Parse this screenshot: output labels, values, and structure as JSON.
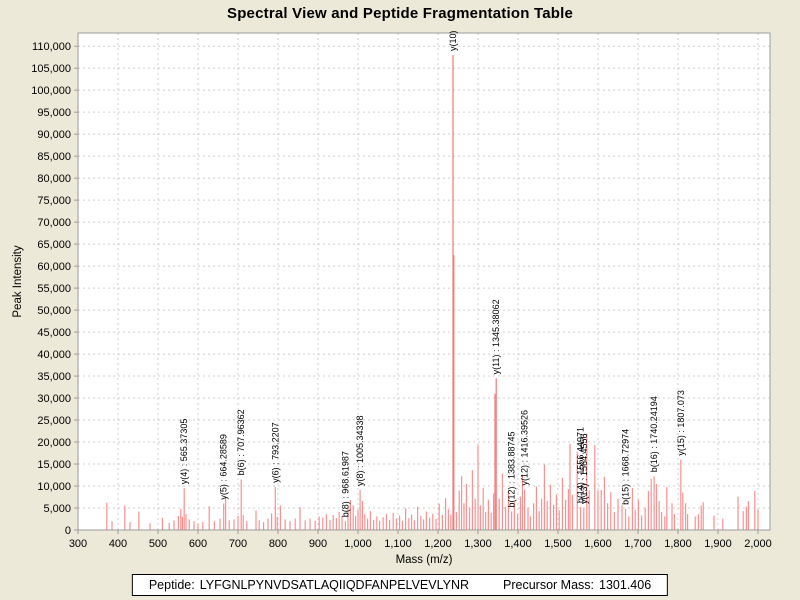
{
  "chart_data": {
    "type": "bar",
    "subtype": "mass-spectrum-stick-plot",
    "title": "Spectral View and Peptide Fragmentation Table",
    "xlabel": "Mass (m/z)",
    "ylabel": "Peak Intensity",
    "xlim": [
      300,
      2030
    ],
    "ylim": [
      0,
      113000
    ],
    "grid": true,
    "legend": "none",
    "plot_bg": "#ffffff",
    "page_bg": "#ece9d8",
    "grid_color": "#cfcfcf",
    "axis_color": "#9b9b9b",
    "tick_text_color": "#000000",
    "peak_color": "#fb9090",
    "peak_color_strong": "#f57878",
    "strong_threshold": 30000,
    "x_ticks": [
      300,
      400,
      500,
      600,
      700,
      800,
      900,
      1000,
      1100,
      1200,
      1300,
      1400,
      1500,
      1600,
      1700,
      1800,
      1900,
      2000
    ],
    "y_ticks": [
      0,
      5000,
      10000,
      15000,
      20000,
      25000,
      30000,
      35000,
      40000,
      45000,
      50000,
      55000,
      60000,
      65000,
      70000,
      75000,
      80000,
      85000,
      90000,
      95000,
      100000,
      105000,
      110000
    ],
    "annotations": [
      {
        "label": "y(4) : 565.37305",
        "mass": 565.4,
        "intensity": 9500
      },
      {
        "label": "y(5) : 664.28589",
        "mass": 664.3,
        "intensity": 6000
      },
      {
        "label": "b(6) : 707.96362",
        "mass": 708.0,
        "intensity": 11500
      },
      {
        "label": "y(6) : 793.2207",
        "mass": 793.2,
        "intensity": 9800
      },
      {
        "label": "b(8) : 968.61987",
        "mass": 968.6,
        "intensity": 2000
      },
      {
        "label": "y(8) : 1005.34338",
        "mass": 1005.3,
        "intensity": 9100
      },
      {
        "label": "y(10)",
        "mass": 1237.4,
        "intensity": 108000
      },
      {
        "label": "y(11) : 1345.38062",
        "mass": 1345.4,
        "intensity": 34500
      },
      {
        "label": "b(12) : 1383.88745",
        "mass": 1383.9,
        "intensity": 4200
      },
      {
        "label": "y(12) : 1416.39526",
        "mass": 1416.4,
        "intensity": 9200
      },
      {
        "label": "b(14) : 1556.44971",
        "mass": 1556.4,
        "intensity": 5200
      },
      {
        "label": "y(13) : 1564.4556",
        "mass": 1564.5,
        "intensity": 5000
      },
      {
        "label": "b(15) : 1668.72974",
        "mass": 1668.7,
        "intensity": 4800
      },
      {
        "label": "b(16) : 1740.24194",
        "mass": 1740.2,
        "intensity": 12200
      },
      {
        "label": "y(15) : 1807.073",
        "mass": 1807.1,
        "intensity": 16000
      }
    ],
    "peaks": [
      [
        372,
        6200
      ],
      [
        385,
        2000
      ],
      [
        417,
        5600
      ],
      [
        430,
        1800
      ],
      [
        452,
        4200
      ],
      [
        480,
        1500
      ],
      [
        511,
        2800
      ],
      [
        528,
        1600
      ],
      [
        540,
        2200
      ],
      [
        551,
        3200
      ],
      [
        557,
        4800
      ],
      [
        561,
        3000
      ],
      [
        565.4,
        9500
      ],
      [
        570,
        3600
      ],
      [
        578,
        2400
      ],
      [
        590,
        2000
      ],
      [
        600,
        1400
      ],
      [
        612,
        1800
      ],
      [
        628,
        5400
      ],
      [
        641,
        2000
      ],
      [
        655,
        2600
      ],
      [
        664.3,
        6000
      ],
      [
        669,
        7400
      ],
      [
        678,
        2200
      ],
      [
        690,
        2400
      ],
      [
        700,
        3200
      ],
      [
        708,
        11500
      ],
      [
        713,
        3400
      ],
      [
        722,
        2000
      ],
      [
        745,
        4400
      ],
      [
        753,
        2200
      ],
      [
        764,
        1800
      ],
      [
        775,
        2600
      ],
      [
        784,
        3800
      ],
      [
        793.2,
        9800
      ],
      [
        798,
        3000
      ],
      [
        806,
        5600
      ],
      [
        818,
        2400
      ],
      [
        830,
        2000
      ],
      [
        843,
        2600
      ],
      [
        855,
        5200
      ],
      [
        868,
        2200
      ],
      [
        880,
        2600
      ],
      [
        893,
        2100
      ],
      [
        903,
        3100
      ],
      [
        912,
        2800
      ],
      [
        921,
        3600
      ],
      [
        930,
        2300
      ],
      [
        938,
        3400
      ],
      [
        946,
        2700
      ],
      [
        953,
        4100
      ],
      [
        960,
        3200
      ],
      [
        968.6,
        2000
      ],
      [
        975,
        5400
      ],
      [
        981,
        6800
      ],
      [
        988,
        5600
      ],
      [
        994,
        3200
      ],
      [
        1000,
        4600
      ],
      [
        1005.3,
        9100
      ],
      [
        1011,
        6600
      ],
      [
        1017,
        3600
      ],
      [
        1024,
        2600
      ],
      [
        1031,
        4300
      ],
      [
        1039,
        2300
      ],
      [
        1047,
        3100
      ],
      [
        1054,
        2100
      ],
      [
        1063,
        2900
      ],
      [
        1071,
        3600
      ],
      [
        1079,
        2300
      ],
      [
        1088,
        3900
      ],
      [
        1096,
        2600
      ],
      [
        1104,
        3300
      ],
      [
        1111,
        2100
      ],
      [
        1119,
        4900
      ],
      [
        1127,
        2700
      ],
      [
        1134,
        3500
      ],
      [
        1141,
        2200
      ],
      [
        1149,
        5300
      ],
      [
        1157,
        3200
      ],
      [
        1164,
        2400
      ],
      [
        1171,
        4200
      ],
      [
        1179,
        2800
      ],
      [
        1187,
        3700
      ],
      [
        1195,
        2500
      ],
      [
        1203,
        6000
      ],
      [
        1211,
        3400
      ],
      [
        1219,
        7200
      ],
      [
        1226,
        4700
      ],
      [
        1232,
        3500
      ],
      [
        1237.4,
        108000
      ],
      [
        1239.6,
        62500
      ],
      [
        1246,
        4100
      ],
      [
        1253,
        9000
      ],
      [
        1259,
        12200
      ],
      [
        1265,
        6100
      ],
      [
        1271,
        10500
      ],
      [
        1279,
        5100
      ],
      [
        1286,
        13600
      ],
      [
        1293,
        7100
      ],
      [
        1300,
        19300
      ],
      [
        1306,
        5600
      ],
      [
        1313,
        9600
      ],
      [
        1319,
        4100
      ],
      [
        1326,
        6900
      ],
      [
        1333,
        3900
      ],
      [
        1339,
        8300
      ],
      [
        1342.5,
        31000
      ],
      [
        1345.4,
        34500
      ],
      [
        1353,
        7100
      ],
      [
        1361,
        12900
      ],
      [
        1369,
        5300
      ],
      [
        1376,
        8900
      ],
      [
        1383.9,
        4200
      ],
      [
        1391,
        6300
      ],
      [
        1399,
        3600
      ],
      [
        1406,
        7600
      ],
      [
        1411,
        12600
      ],
      [
        1416.4,
        9200
      ],
      [
        1425,
        5100
      ],
      [
        1431,
        3100
      ],
      [
        1439,
        6100
      ],
      [
        1446,
        9900
      ],
      [
        1453,
        4300
      ],
      [
        1459,
        7100
      ],
      [
        1466,
        14900
      ],
      [
        1473,
        6600
      ],
      [
        1481,
        10300
      ],
      [
        1489,
        5700
      ],
      [
        1496,
        8100
      ],
      [
        1503,
        4500
      ],
      [
        1511,
        11900
      ],
      [
        1519,
        6900
      ],
      [
        1526,
        9300
      ],
      [
        1530,
        19600
      ],
      [
        1536,
        8000
      ],
      [
        1548,
        17800
      ],
      [
        1556.4,
        5200
      ],
      [
        1564.5,
        5000
      ],
      [
        1572,
        21900
      ],
      [
        1578,
        9000
      ],
      [
        1592,
        19300
      ],
      [
        1600,
        9000
      ],
      [
        1608,
        9100
      ],
      [
        1616,
        12100
      ],
      [
        1624,
        6100
      ],
      [
        1632,
        8600
      ],
      [
        1641,
        4100
      ],
      [
        1650,
        7100
      ],
      [
        1660,
        5600
      ],
      [
        1668.7,
        4800
      ],
      [
        1677,
        3100
      ],
      [
        1686,
        9600
      ],
      [
        1693,
        4600
      ],
      [
        1701,
        6900
      ],
      [
        1709,
        3300
      ],
      [
        1718,
        5100
      ],
      [
        1726,
        8900
      ],
      [
        1733,
        11600
      ],
      [
        1740.2,
        12200
      ],
      [
        1746,
        10500
      ],
      [
        1753,
        6600
      ],
      [
        1759,
        4100
      ],
      [
        1767,
        3100
      ],
      [
        1772,
        9800
      ],
      [
        1785,
        6100
      ],
      [
        1791,
        3600
      ],
      [
        1807.1,
        16000
      ],
      [
        1812,
        8500
      ],
      [
        1819,
        6100
      ],
      [
        1824,
        3600
      ],
      [
        1843,
        3100
      ],
      [
        1851,
        3600
      ],
      [
        1858,
        5600
      ],
      [
        1863,
        6300
      ],
      [
        1890,
        3300
      ],
      [
        1912,
        2600
      ],
      [
        1950,
        7600
      ],
      [
        1963,
        4300
      ],
      [
        1971,
        5300
      ],
      [
        1976,
        6600
      ],
      [
        1992,
        8900
      ],
      [
        2000,
        4600
      ]
    ]
  },
  "footer": {
    "peptide_label": "Peptide:",
    "peptide_sequence": "LYFGNLPYNVDSATLAQIIQDFANPELVEVLYNR",
    "precursor_label": "Precursor Mass:",
    "precursor_value": "1301.406"
  }
}
